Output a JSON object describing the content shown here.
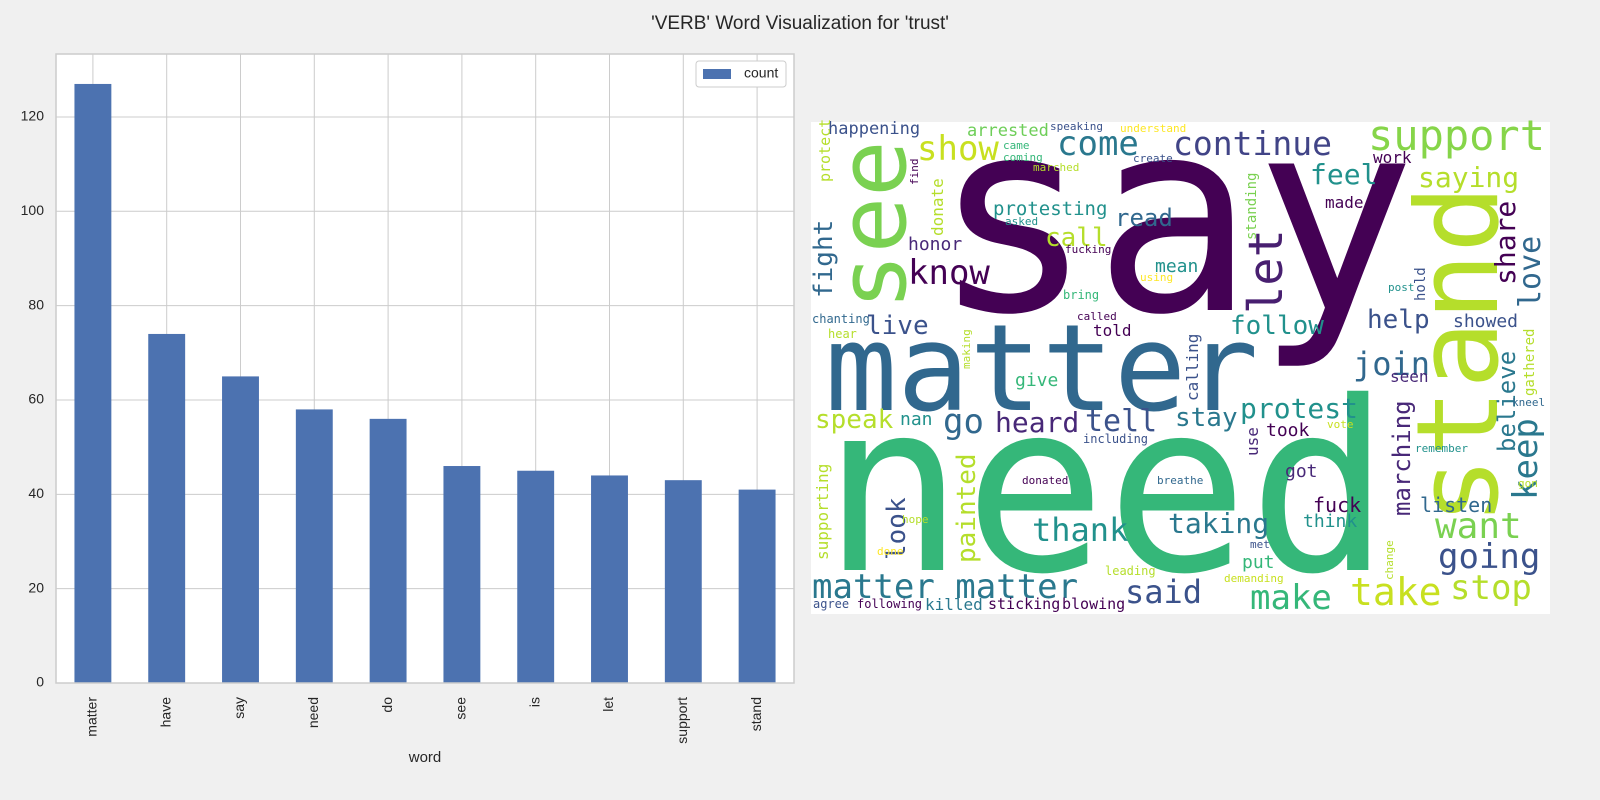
{
  "title": "'VERB' Word Visualization for 'trust'",
  "chart_data": [
    {
      "type": "bar",
      "xlabel": "word",
      "categories": [
        "matter",
        "have",
        "say",
        "need",
        "do",
        "see",
        "is",
        "let",
        "support",
        "stand"
      ],
      "series": [
        {
          "name": "count",
          "color": "#4c72b0",
          "values": [
            127,
            74,
            65,
            58,
            56,
            46,
            45,
            44,
            43,
            41
          ]
        }
      ],
      "ylim": [
        0,
        133.35
      ],
      "yticks": [
        0,
        20,
        40,
        60,
        80,
        100,
        120
      ],
      "grid": true,
      "legend": "upper right"
    },
    {
      "type": "wordcloud",
      "background": "#ffffff",
      "words": [
        {
          "text": "say",
          "color": "#440154"
        },
        {
          "text": "need",
          "color": "#35b779"
        },
        {
          "text": "matter",
          "color": "#31688e"
        },
        {
          "text": "stand",
          "color": "#b5de2b"
        },
        {
          "text": "see",
          "color": "#7ad151"
        },
        {
          "text": "support",
          "color": "#86d549"
        },
        {
          "text": "continue",
          "color": "#414487"
        },
        {
          "text": "come",
          "color": "#2a788e"
        },
        {
          "text": "show",
          "color": "#c8e020"
        },
        {
          "text": "happening",
          "color": "#3b528b"
        },
        {
          "text": "arrested",
          "color": "#6ece58"
        },
        {
          "text": "speaking",
          "color": "#3b528b"
        },
        {
          "text": "understand",
          "color": "#fde725"
        },
        {
          "text": "protect",
          "color": "#b5de2b"
        },
        {
          "text": "came",
          "color": "#35b779"
        },
        {
          "text": "coming",
          "color": "#35b779"
        },
        {
          "text": "create",
          "color": "#3b528b"
        },
        {
          "text": "marched",
          "color": "#b5de2b"
        },
        {
          "text": "find",
          "color": "#440154"
        },
        {
          "text": "work",
          "color": "#440154"
        },
        {
          "text": "feel",
          "color": "#21918c"
        },
        {
          "text": "saying",
          "color": "#b5de2b"
        },
        {
          "text": "standing",
          "color": "#7ad151"
        },
        {
          "text": "fight",
          "color": "#31688e"
        },
        {
          "text": "donate",
          "color": "#b5de2b"
        },
        {
          "text": "protesting",
          "color": "#21918c"
        },
        {
          "text": "read",
          "color": "#31688e"
        },
        {
          "text": "made",
          "color": "#440154"
        },
        {
          "text": "asked",
          "color": "#21918c"
        },
        {
          "text": "call",
          "color": "#b5de2b"
        },
        {
          "text": "honor",
          "color": "#482878"
        },
        {
          "text": "know",
          "color": "#440154"
        },
        {
          "text": "fucking",
          "color": "#440154"
        },
        {
          "text": "let",
          "color": "#481f70"
        },
        {
          "text": "share",
          "color": "#440154"
        },
        {
          "text": "love",
          "color": "#31688e"
        },
        {
          "text": "mean",
          "color": "#21918c"
        },
        {
          "text": "using",
          "color": "#fde725"
        },
        {
          "text": "hold",
          "color": "#3b528b"
        },
        {
          "text": "post",
          "color": "#21918c"
        },
        {
          "text": "bring",
          "color": "#35b779"
        },
        {
          "text": "chanting",
          "color": "#31688e"
        },
        {
          "text": "called",
          "color": "#440154"
        },
        {
          "text": "live",
          "color": "#3b528b"
        },
        {
          "text": "follow",
          "color": "#21918c"
        },
        {
          "text": "help",
          "color": "#3b528b"
        },
        {
          "text": "showed",
          "color": "#3b528b"
        },
        {
          "text": "hear",
          "color": "#b5de2b"
        },
        {
          "text": "told",
          "color": "#440154"
        },
        {
          "text": "making",
          "color": "#b5de2b"
        },
        {
          "text": "calling",
          "color": "#3b528b"
        },
        {
          "text": "gathered",
          "color": "#b5de2b"
        },
        {
          "text": "join",
          "color": "#31688e"
        },
        {
          "text": "believe",
          "color": "#2a788e"
        },
        {
          "text": "seen",
          "color": "#482878"
        },
        {
          "text": "give",
          "color": "#35b779"
        },
        {
          "text": "marching",
          "color": "#482878"
        },
        {
          "text": "kneel",
          "color": "#31688e"
        },
        {
          "text": "speak",
          "color": "#b5de2b"
        },
        {
          "text": "nan",
          "color": "#21918c"
        },
        {
          "text": "go",
          "color": "#31688e"
        },
        {
          "text": "heard",
          "color": "#482878"
        },
        {
          "text": "tell",
          "color": "#3b528b"
        },
        {
          "text": "stay",
          "color": "#2a788e"
        },
        {
          "text": "protest",
          "color": "#21918c"
        },
        {
          "text": "took",
          "color": "#440154"
        },
        {
          "text": "use",
          "color": "#482878"
        },
        {
          "text": "vote",
          "color": "#c8e020"
        },
        {
          "text": "keep",
          "color": "#2a788e"
        },
        {
          "text": "including",
          "color": "#3b528b"
        },
        {
          "text": "remember",
          "color": "#21918c"
        },
        {
          "text": "supporting",
          "color": "#b5de2b"
        },
        {
          "text": "painted",
          "color": "#b5de2b"
        },
        {
          "text": "look",
          "color": "#3b528b"
        },
        {
          "text": "got",
          "color": "#482878"
        },
        {
          "text": "donated",
          "color": "#440154"
        },
        {
          "text": "breathe",
          "color": "#31688e"
        },
        {
          "text": "gon",
          "color": "#b5de2b"
        },
        {
          "text": "listen",
          "color": "#31688e"
        },
        {
          "text": "fuck",
          "color": "#440154"
        },
        {
          "text": "want",
          "color": "#7ad151"
        },
        {
          "text": "thank",
          "color": "#21918c"
        },
        {
          "text": "taking",
          "color": "#2a788e"
        },
        {
          "text": "think",
          "color": "#21918c"
        },
        {
          "text": "hope",
          "color": "#b5de2b"
        },
        {
          "text": "going",
          "color": "#3b528b"
        },
        {
          "text": "met",
          "color": "#3b528b"
        },
        {
          "text": "change",
          "color": "#b5de2b"
        },
        {
          "text": "done",
          "color": "#fde725"
        },
        {
          "text": "put",
          "color": "#35b779"
        },
        {
          "text": "leading",
          "color": "#b5de2b"
        },
        {
          "text": "demanding",
          "color": "#c8e020"
        },
        {
          "text": "matter matter",
          "color": "#2a788e"
        },
        {
          "text": "said",
          "color": "#3b528b"
        },
        {
          "text": "make",
          "color": "#35b779"
        },
        {
          "text": "take",
          "color": "#c8e020"
        },
        {
          "text": "stop",
          "color": "#b5de2b"
        },
        {
          "text": "agree",
          "color": "#3b528b"
        },
        {
          "text": "following",
          "color": "#440154"
        },
        {
          "text": "killed",
          "color": "#2a788e"
        },
        {
          "text": "sticking",
          "color": "#440154"
        },
        {
          "text": "blowing",
          "color": "#440154"
        }
      ]
    }
  ]
}
